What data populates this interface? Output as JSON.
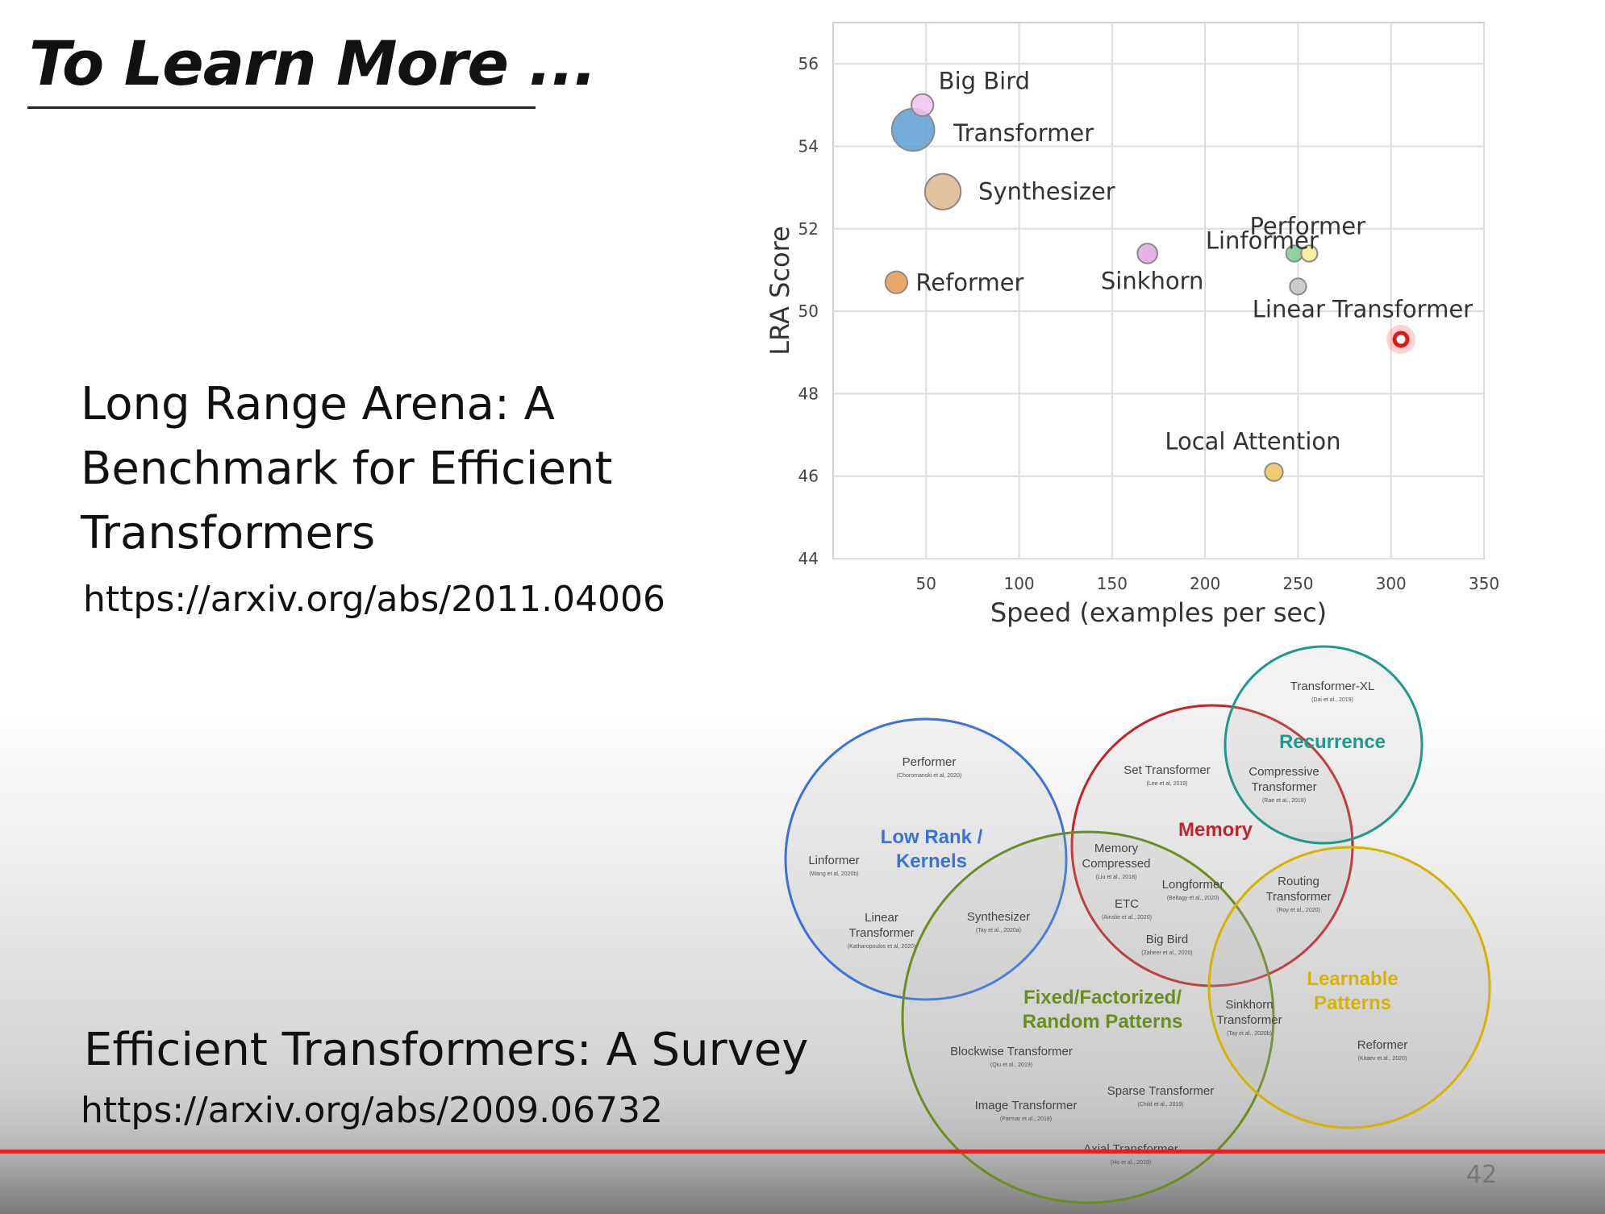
{
  "slide": {
    "title": "To Learn More ...",
    "ref1": {
      "title": "Long Range Arena: A Benchmark for Efficient Transformers",
      "url": "https://arxiv.org/abs/2011.04006"
    },
    "ref2": {
      "title": "Efficient Transformers: A Survey",
      "url": "https://arxiv.org/abs/2009.06732"
    },
    "page_number": "42"
  },
  "chart_data": {
    "type": "scatter",
    "xlabel": "Speed (examples per sec)",
    "ylabel": "LRA Score",
    "xlim": [
      0,
      350
    ],
    "ylim": [
      44,
      57
    ],
    "xticks": [
      50,
      100,
      150,
      200,
      250,
      300,
      350
    ],
    "yticks": [
      44,
      46,
      48,
      50,
      52,
      54,
      56
    ],
    "grid": true,
    "points": [
      {
        "label": "Big Bird",
        "x": 48,
        "y": 55.0,
        "size": 2.5,
        "color": "#f3c2ee"
      },
      {
        "label": "Transformer",
        "x": 43,
        "y": 54.4,
        "size": 10.0,
        "color": "#5b9fd1"
      },
      {
        "label": "Synthesizer",
        "x": 59,
        "y": 52.9,
        "size": 7.0,
        "color": "#dcb98f"
      },
      {
        "label": "Reformer",
        "x": 34,
        "y": 50.7,
        "size": 2.5,
        "color": "#e39a50"
      },
      {
        "label": "Sinkhorn",
        "x": 169,
        "y": 51.4,
        "size": 2.0,
        "color": "#e0a6de"
      },
      {
        "label": "Linformer",
        "x": 248,
        "y": 51.4,
        "size": 1.3,
        "color": "#7dcb93"
      },
      {
        "label": "Performer",
        "x": 256,
        "y": 51.4,
        "size": 1.3,
        "color": "#f4ef8e"
      },
      {
        "label": "Linear Transformer",
        "x": 250,
        "y": 50.6,
        "size": 1.3,
        "color": "#c4c4c4"
      },
      {
        "label": "Local Attention",
        "x": 237,
        "y": 46.1,
        "size": 1.6,
        "color": "#f0c25a"
      }
    ]
  },
  "venn": {
    "circles": [
      {
        "label": "Low Rank / Kernels",
        "color": "#3a72d8"
      },
      {
        "label": "Memory",
        "color": "#c0252b"
      },
      {
        "label": "Recurrence",
        "color": "#1f9a8a"
      },
      {
        "label": "Fixed/Factorized/ Random Patterns",
        "color": "#6b8e23"
      },
      {
        "label": "Learnable Patterns",
        "color": "#d4b400"
      }
    ],
    "items": [
      {
        "name": "Performer",
        "cite": "(Choromanski et al, 2020)"
      },
      {
        "name": "Linformer",
        "cite": "(Wang et al, 2020b)"
      },
      {
        "name": "Linear Transformer",
        "cite": "(Katharopoulos et al, 2020)"
      },
      {
        "name": "Synthesizer",
        "cite": "(Tay et al., 2020a)"
      },
      {
        "name": "Set Transformer",
        "cite": "(Lee et al, 2019)"
      },
      {
        "name": "Memory Compressed",
        "cite": "(Liu et al., 2018)"
      },
      {
        "name": "Longformer",
        "cite": "(Beltagy et al., 2020)"
      },
      {
        "name": "ETC",
        "cite": "(Ainslie et al., 2020)"
      },
      {
        "name": "Big Bird",
        "cite": "(Zaheer et al., 2020)"
      },
      {
        "name": "Transformer-XL",
        "cite": "(Dai et al., 2019)"
      },
      {
        "name": "Compressive Transformer",
        "cite": "(Rae et al., 2018)"
      },
      {
        "name": "Routing Transformer",
        "cite": "(Roy et al., 2020)"
      },
      {
        "name": "Sinkhorn Transformer",
        "cite": "(Tay et al., 2020b)"
      },
      {
        "name": "Reformer",
        "cite": "(Kitaev et al., 2020)"
      },
      {
        "name": "Blockwise Transformer",
        "cite": "(Qiu et al., 2019)"
      },
      {
        "name": "Sparse Transformer",
        "cite": "(Child et al., 2019)"
      },
      {
        "name": "Image Transformer",
        "cite": "(Parmar et al., 2018)"
      },
      {
        "name": "Axial Transformer",
        "cite": "(Ho et al., 2019)"
      }
    ]
  }
}
